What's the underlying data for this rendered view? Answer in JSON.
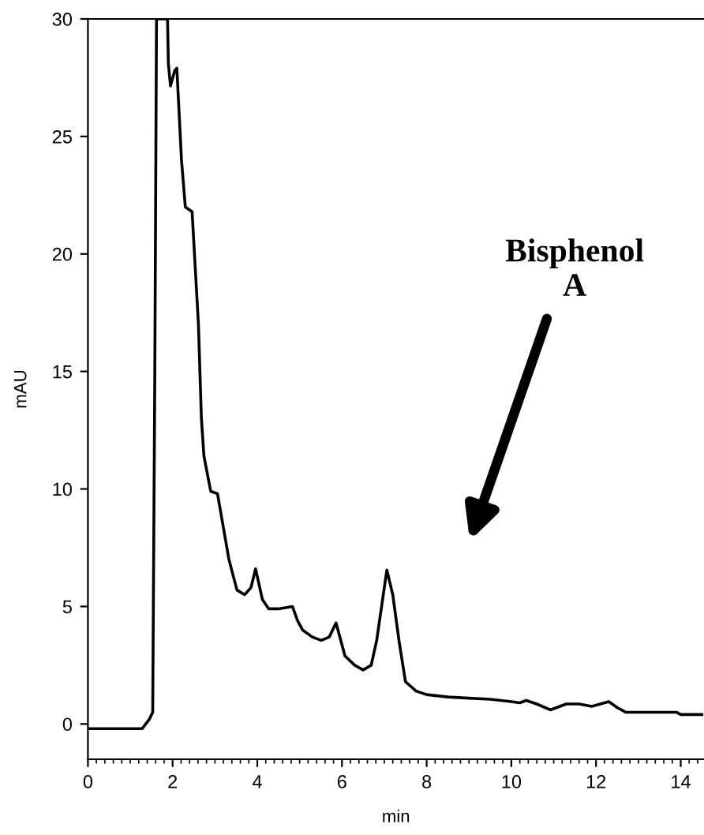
{
  "chart_data": {
    "type": "line",
    "xlabel": "min",
    "ylabel": "mAU",
    "xlim": [
      0,
      14.55
    ],
    "xticks": [
      0,
      2,
      4,
      6,
      8,
      10,
      12,
      14
    ],
    "ylim": [
      -1.5,
      30
    ],
    "yticks": [
      0,
      5,
      10,
      15,
      20,
      25,
      30
    ],
    "grid": false,
    "legend": false,
    "marker": "none",
    "line_style": "solid",
    "annotations": [
      "Bisphenol\nA"
    ],
    "series": [
      {
        "color": "#000000",
        "x": [
          0,
          1.28,
          1.45,
          1.53,
          1.58,
          1.62,
          1.88,
          1.9,
          1.95,
          2.05,
          2.1,
          2.21,
          2.3,
          2.46,
          2.61,
          2.68,
          2.74,
          2.9,
          3.06,
          3.33,
          3.52,
          3.7,
          3.85,
          3.96,
          4.12,
          4.27,
          4.5,
          4.83,
          4.95,
          5.07,
          5.3,
          5.51,
          5.7,
          5.86,
          6.07,
          6.3,
          6.5,
          6.69,
          6.82,
          7.06,
          7.2,
          7.35,
          7.5,
          7.75,
          8.0,
          8.5,
          9.0,
          9.5,
          10.0,
          10.2,
          10.35,
          10.6,
          10.92,
          11.3,
          11.6,
          11.9,
          12.3,
          12.5,
          12.7,
          13.9,
          14.0,
          14.5
        ],
        "values": [
          -0.2,
          -0.2,
          0.2,
          0.5,
          15,
          30,
          30,
          28.1,
          27.15,
          27.8,
          27.9,
          24,
          22,
          21.8,
          17,
          13,
          11.4,
          9.9,
          9.8,
          7.0,
          5.7,
          5.5,
          5.8,
          6.6,
          5.3,
          4.9,
          4.9,
          5.0,
          4.4,
          4.0,
          3.7,
          3.56,
          3.7,
          4.3,
          2.9,
          2.5,
          2.3,
          2.5,
          3.56,
          6.55,
          5.5,
          3.5,
          1.8,
          1.4,
          1.25,
          1.15,
          1.1,
          1.05,
          0.95,
          0.9,
          1.0,
          0.85,
          0.6,
          0.85,
          0.85,
          0.75,
          0.95,
          0.7,
          0.5,
          0.5,
          0.4,
          0.4
        ]
      }
    ]
  }
}
